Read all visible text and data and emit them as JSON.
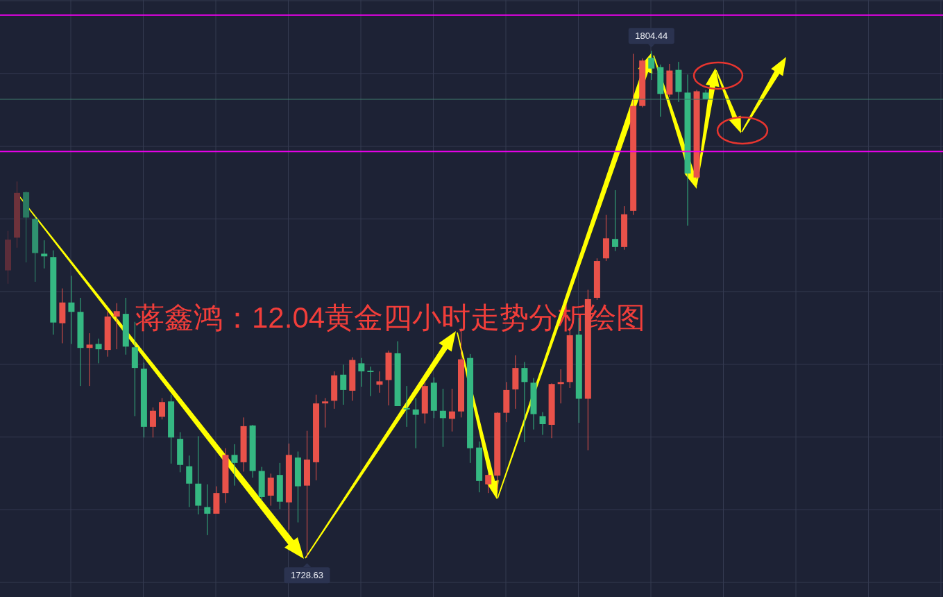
{
  "chart_data": {
    "type": "candlestick",
    "title": "蒋鑫鸿：12.04黄金四小时走势分析绘图",
    "categories": [
      null,
      null,
      null,
      null,
      null,
      null,
      null,
      null,
      null,
      null,
      null,
      null,
      null,
      null,
      null,
      null,
      null,
      null,
      null,
      null,
      null,
      null,
      null,
      null,
      null,
      null,
      null,
      null,
      null,
      null,
      null,
      null,
      null,
      null,
      null,
      null,
      null,
      null,
      null,
      null,
      null,
      null,
      null,
      null,
      null,
      null,
      null,
      null,
      null,
      null,
      null,
      null,
      null,
      null,
      null,
      null,
      null,
      null,
      null,
      null,
      null,
      null,
      null,
      null,
      null,
      null,
      null,
      null,
      null,
      null,
      null,
      null,
      null,
      null,
      null,
      null,
      null,
      null
    ],
    "ohlc": [
      [
        1771.6,
        1777.5,
        1769.6,
        1776.2
      ],
      [
        1776.5,
        1784.9,
        1775.0,
        1783.2
      ],
      [
        1783.3,
        1783.4,
        1772.8,
        1779.5
      ],
      [
        1779.3,
        1779.7,
        1769.9,
        1774.2
      ],
      [
        1774.1,
        1776.1,
        1771.9,
        1773.7
      ],
      [
        1773.6,
        1774.6,
        1762.0,
        1763.8
      ],
      [
        1763.7,
        1768.9,
        1760.7,
        1766.8
      ],
      [
        1766.8,
        1770.8,
        1760.6,
        1765.4
      ],
      [
        1765.4,
        1767.5,
        1754.3,
        1760.0
      ],
      [
        1760.0,
        1762.2,
        1754.3,
        1760.5
      ],
      [
        1760.6,
        1761.4,
        1757.7,
        1759.8
      ],
      [
        1759.7,
        1765.5,
        1758.7,
        1764.7
      ],
      [
        1764.7,
        1766.7,
        1759.8,
        1765.5
      ],
      [
        1765.1,
        1767.5,
        1759.0,
        1760.2
      ],
      [
        1760.1,
        1763.9,
        1749.8,
        1757.0
      ],
      [
        1756.9,
        1757.8,
        1746.6,
        1748.2
      ],
      [
        1748.2,
        1751.1,
        1746.6,
        1750.6
      ],
      [
        1749.7,
        1752.5,
        1749.3,
        1751.9
      ],
      [
        1752.0,
        1753.0,
        1742.7,
        1746.6
      ],
      [
        1746.4,
        1747.4,
        1741.4,
        1742.5
      ],
      [
        1742.3,
        1743.9,
        1736.2,
        1739.7
      ],
      [
        1739.7,
        1746.8,
        1735.1,
        1736.4
      ],
      [
        1736.2,
        1739.6,
        1732.0,
        1735.2
      ],
      [
        1735.2,
        1739.3,
        1735.2,
        1738.3
      ],
      [
        1738.3,
        1745.0,
        1736.8,
        1744.0
      ],
      [
        1744.0,
        1745.6,
        1739.4,
        1742.8
      ],
      [
        1742.9,
        1749.6,
        1741.5,
        1748.3
      ],
      [
        1748.4,
        1748.5,
        1740.6,
        1741.6
      ],
      [
        1741.6,
        1742.2,
        1737.2,
        1737.7
      ],
      [
        1737.9,
        1741.2,
        1736.4,
        1740.6
      ],
      [
        1741.0,
        1742.8,
        1735.9,
        1737.0
      ],
      [
        1736.9,
        1745.7,
        1732.8,
        1744.0
      ],
      [
        1743.6,
        1744.5,
        1733.9,
        1739.3
      ],
      [
        1739.4,
        1747.6,
        1728.63,
        1743.3
      ],
      [
        1742.9,
        1753.0,
        1740.2,
        1751.7
      ],
      [
        1751.7,
        1752.5,
        1748.1,
        1752.0
      ],
      [
        1752.1,
        1756.5,
        1750.9,
        1755.9
      ],
      [
        1756.0,
        1757.5,
        1751.5,
        1753.7
      ],
      [
        1753.6,
        1758.6,
        1752.1,
        1758.2
      ],
      [
        1757.7,
        1758.5,
        1754.2,
        1756.5
      ],
      [
        1756.6,
        1757.2,
        1752.8,
        1756.4
      ],
      [
        1754.5,
        1756.5,
        1753.3,
        1755.0
      ],
      [
        1755.2,
        1759.6,
        1751.4,
        1759.3
      ],
      [
        1759.2,
        1761.0,
        1751.3,
        1751.3
      ],
      [
        1751.0,
        1754.3,
        1748.2,
        1750.8
      ],
      [
        1750.8,
        1752.5,
        1745.0,
        1750.0
      ],
      [
        1750.2,
        1754.9,
        1748.7,
        1754.3
      ],
      [
        1754.8,
        1755.6,
        1749.5,
        1750.6
      ],
      [
        1750.6,
        1753.9,
        1745.2,
        1749.5
      ],
      [
        1749.4,
        1753.9,
        1747.5,
        1750.5
      ],
      [
        1750.5,
        1763.0,
        1749.6,
        1758.3
      ],
      [
        1758.5,
        1759.1,
        1742.8,
        1745.0
      ],
      [
        1745.1,
        1746.0,
        1738.4,
        1740.1
      ],
      [
        1739.6,
        1741.2,
        1738.3,
        1741.0
      ],
      [
        1740.9,
        1750.4,
        1738.7,
        1750.3
      ],
      [
        1750.3,
        1754.9,
        1748.9,
        1753.7
      ],
      [
        1753.8,
        1758.9,
        1750.9,
        1757.0
      ],
      [
        1757.0,
        1757.9,
        1745.9,
        1754.9
      ],
      [
        1754.8,
        1755.5,
        1747.8,
        1750.1
      ],
      [
        1749.8,
        1750.4,
        1747.0,
        1748.6
      ],
      [
        1748.5,
        1754.7,
        1746.5,
        1754.6
      ],
      [
        1754.6,
        1756.8,
        1751.7,
        1754.9
      ],
      [
        1754.9,
        1762.7,
        1754.0,
        1761.9
      ],
      [
        1762.0,
        1764.5,
        1748.8,
        1752.4
      ],
      [
        1752.4,
        1768.7,
        1744.7,
        1767.3
      ],
      [
        1767.5,
        1773.4,
        1767.2,
        1773.0
      ],
      [
        1773.4,
        1779.9,
        1773.0,
        1776.4
      ],
      [
        1776.3,
        1783.6,
        1774.5,
        1775.1
      ],
      [
        1775.1,
        1781.2,
        1774.7,
        1780.0
      ],
      [
        1780.5,
        1804.0,
        1779.9,
        1796.2
      ],
      [
        1796.2,
        1803.3,
        1796.0,
        1803.0
      ],
      [
        1803.4,
        1804.44,
        1800.1,
        1801.8
      ],
      [
        1802.0,
        1802.4,
        1794.6,
        1798.0
      ],
      [
        1797.9,
        1802.5,
        1797.5,
        1801.5
      ],
      [
        1801.6,
        1802.8,
        1796.8,
        1798.3
      ],
      [
        1798.2,
        1800.9,
        1778.3,
        1786.1
      ],
      [
        1785.5,
        1798.6,
        1785.3,
        1798.4
      ],
      [
        1798.2,
        1798.6,
        1797.2,
        1797.2
      ]
    ],
    "colors": [
      "#5c2d3a",
      "#6e323b",
      "#2a7a61",
      "#2f9270",
      "#35b882",
      "#35b882",
      "#e9524a",
      "#35b882",
      "#35b882",
      "#e9524a",
      "#35b882",
      "#e9524a",
      "#e9524a",
      "#35b882",
      "#35b882",
      "#35b882",
      "#e9524a",
      "#e9524a",
      "#35b882",
      "#35b882",
      "#35b882",
      "#35b882",
      "#35b882",
      "#e9524a",
      "#e9524a",
      "#35b882",
      "#e9524a",
      "#35b882",
      "#35b882",
      "#e9524a",
      "#35b882",
      "#e9524a",
      "#35b882",
      "#e9524a",
      "#e9524a",
      "#e9524a",
      "#e9524a",
      "#35b882",
      "#e9524a",
      "#35b882",
      "#35b882",
      "#e9524a",
      "#e9524a",
      "#35b882",
      "#35b882",
      "#35b882",
      "#e9524a",
      "#35b882",
      "#35b882",
      "#e9524a",
      "#e9524a",
      "#35b882",
      "#35b882",
      "#e9524a",
      "#e9524a",
      "#e9524a",
      "#e9524a",
      "#35b882",
      "#35b882",
      "#35b882",
      "#e9524a",
      "#e9524a",
      "#e9524a",
      "#35b882",
      "#e9524a",
      "#e9524a",
      "#e9524a",
      "#35b882",
      "#e9524a",
      "#e9524a",
      "#e9524a",
      "#35b882",
      "#35b882",
      "#e9524a",
      "#35b882",
      "#35b882",
      "#e9524a",
      "#35b882"
    ],
    "grid": true,
    "ref_lines": [
      {
        "axis": "y",
        "value": 1809.8,
        "color": "#f000f0"
      },
      {
        "axis": "y",
        "value": 1789.4,
        "color": "#f000f0"
      },
      {
        "axis": "y",
        "value": 1797.2,
        "color": "#3e7a6d"
      }
    ],
    "annotations": [
      {
        "text": "1804.44",
        "y": 1804.44
      },
      {
        "text": "1728.63",
        "y": 1728.63
      }
    ]
  }
}
